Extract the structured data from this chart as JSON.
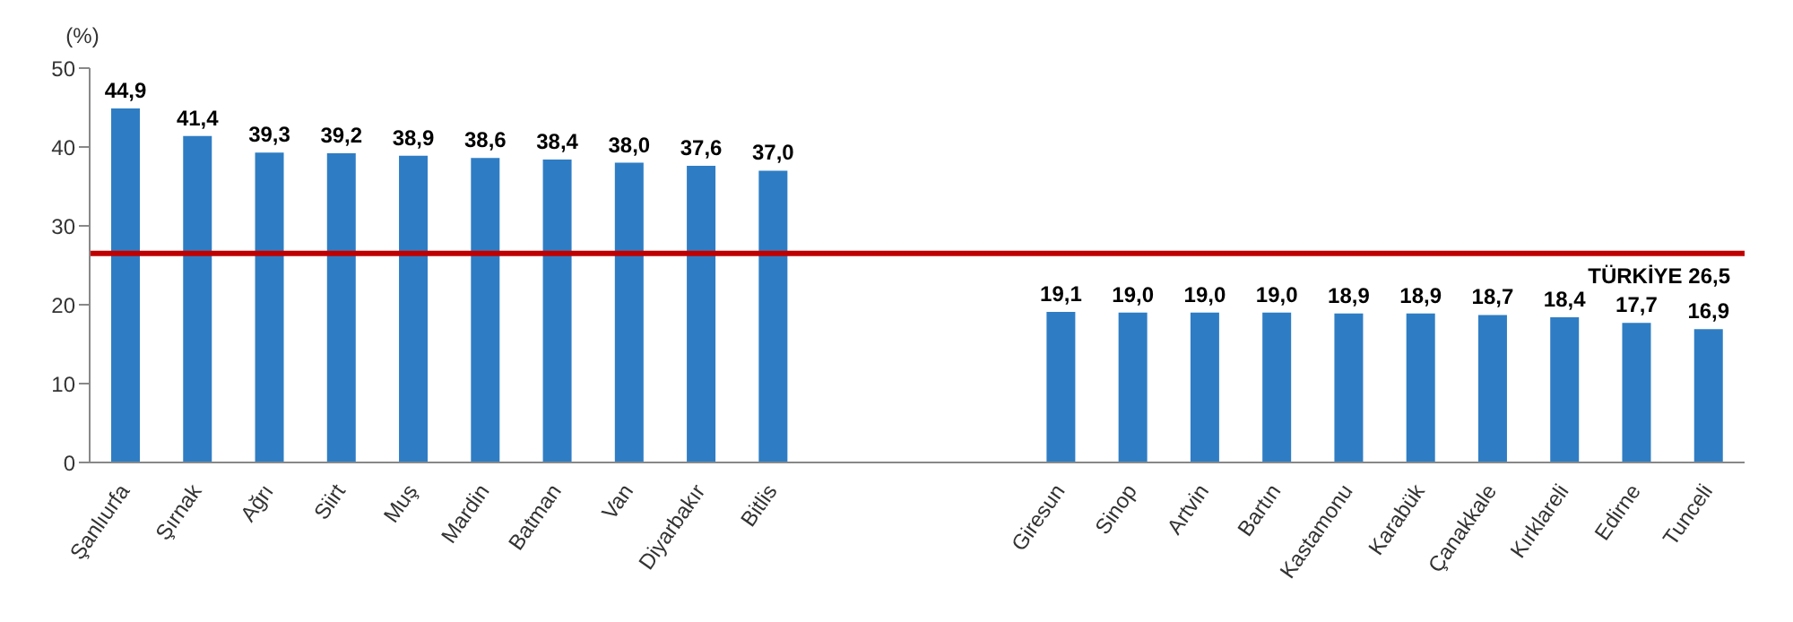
{
  "chart_data": {
    "type": "bar",
    "ylabel": "(%)",
    "categories": [
      "Şanlıurfa",
      "Şırnak",
      "Ağrı",
      "Siirt",
      "Muş",
      "Mardin",
      "Batman",
      "Van",
      "Diyarbakır",
      "Bitlis",
      null,
      null,
      null,
      "Giresun",
      "Sinop",
      "Artvin",
      "Bartın",
      "Kastamonu",
      "Karabük",
      "Çanakkale",
      "Kırklareli",
      "Edirne",
      "Tunceli"
    ],
    "values": [
      44.9,
      41.4,
      39.3,
      39.2,
      38.9,
      38.6,
      38.4,
      38.0,
      37.6,
      37.0,
      null,
      null,
      null,
      19.1,
      19.0,
      19.0,
      19.0,
      18.9,
      18.9,
      18.7,
      18.4,
      17.7,
      16.9
    ],
    "value_labels": [
      "44,9",
      "41,4",
      "39,3",
      "39,2",
      "38,9",
      "38,6",
      "38,4",
      "38,0",
      "37,6",
      "37,0",
      null,
      null,
      null,
      "19,1",
      "19,0",
      "19,0",
      "19,0",
      "18,9",
      "18,9",
      "18,7",
      "18,4",
      "17,7",
      "16,9"
    ],
    "color": "#2e7dc4",
    "ylim": [
      0,
      50
    ],
    "yticks": [
      0,
      10,
      20,
      30,
      40,
      50
    ],
    "grid": false,
    "ref_lines": [
      {
        "axis": "y",
        "value": 26.5,
        "label": "TÜRKİYE  26,5",
        "color": "#c00000",
        "line_style": "solid"
      }
    ]
  }
}
